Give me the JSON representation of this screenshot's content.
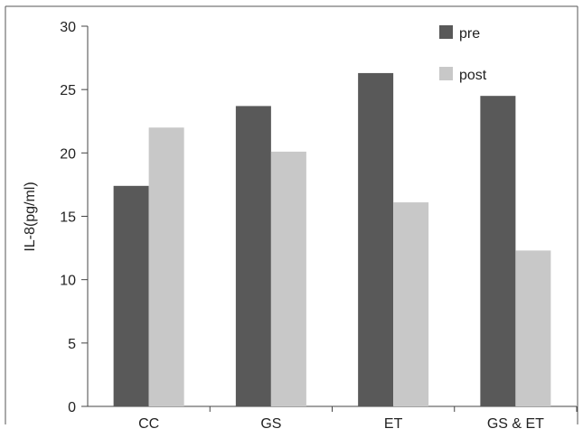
{
  "chart_data": {
    "type": "bar",
    "categories": [
      "CC",
      "GS",
      "ET",
      "GS & ET"
    ],
    "series": [
      {
        "name": "pre",
        "values": [
          17.4,
          23.7,
          26.3,
          24.5
        ],
        "color": "#595959"
      },
      {
        "name": "post",
        "values": [
          22.0,
          20.1,
          16.1,
          12.3
        ],
        "color": "#c8c8c8"
      }
    ],
    "xlabel": "",
    "ylabel": "IL-8(pg/ml)",
    "ylim": [
      0,
      30
    ],
    "yticks": [
      "0",
      "5",
      "10",
      "15",
      "20",
      "25",
      "30"
    ],
    "grid": false,
    "legend_position": "top-right"
  }
}
